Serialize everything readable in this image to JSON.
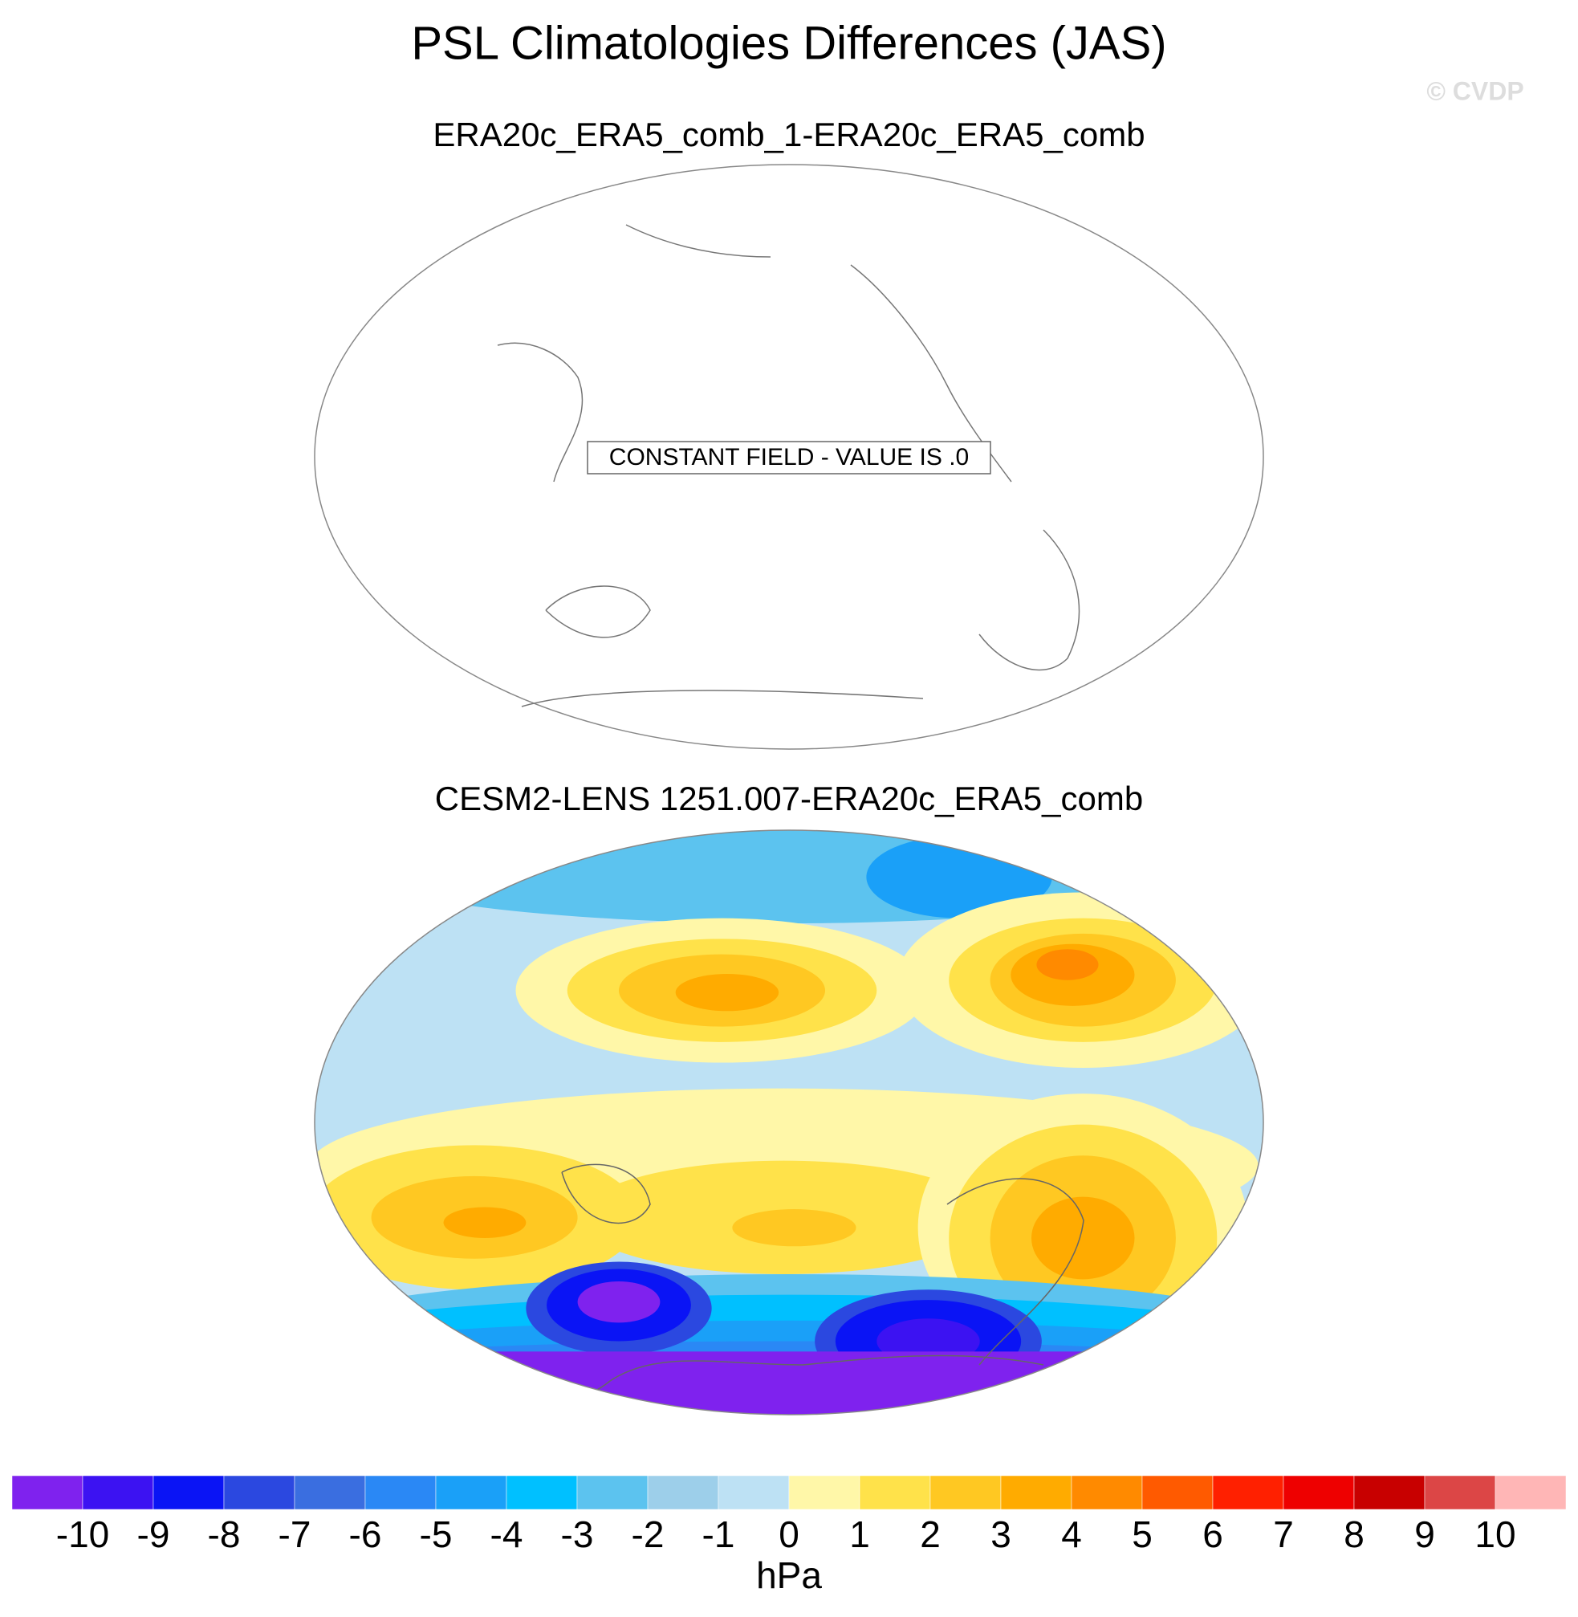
{
  "title": "PSL Climatologies Differences (JAS)",
  "watermark": "© CVDP",
  "panels": [
    {
      "title": "ERA20c_ERA5_comb_1-ERA20c_ERA5_comb",
      "note": "CONSTANT FIELD - VALUE IS .0"
    },
    {
      "title": "CESM2-LENS 1251.007-ERA20c_ERA5_comb"
    }
  ],
  "colorbar": {
    "colors": [
      "#7f22ee",
      "#3c12f2",
      "#0a14f5",
      "#2b48e0",
      "#3a6ee0",
      "#2a88f5",
      "#1aa0f8",
      "#00c0ff",
      "#5cc3ef",
      "#9dcfea",
      "#bde1f4",
      "#fff7a8",
      "#ffe24a",
      "#ffc822",
      "#ffab00",
      "#ff8a00",
      "#ff5a00",
      "#ff2000",
      "#ee0000",
      "#c80000",
      "#dc4646",
      "#ffb6b6"
    ],
    "ticks": [
      -10,
      -9,
      -8,
      -7,
      -6,
      -5,
      -4,
      -3,
      -2,
      -1,
      0,
      1,
      2,
      3,
      4,
      5,
      6,
      7,
      8,
      9,
      10
    ],
    "label": "hPa"
  }
}
